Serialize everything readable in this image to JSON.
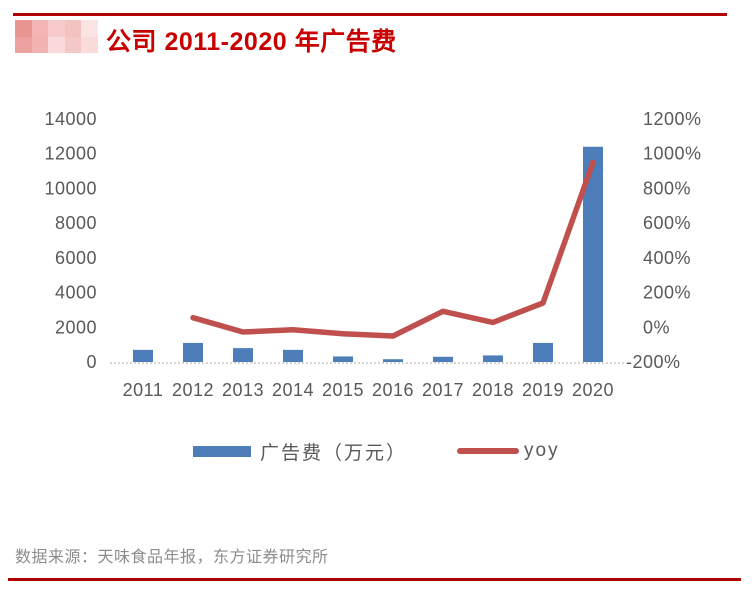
{
  "header": {
    "title": "公司 2011-2020 年广告费",
    "logo_mosaic_colors": [
      "#E99693",
      "#F2B5B3",
      "#F7CBCB",
      "#F4C2C1",
      "#FBE4E4",
      "#ECA3A0",
      "#F1B2B0",
      "#F9D9D9",
      "#F5C8C8",
      "#FADCDC"
    ]
  },
  "chart_data": {
    "type": "bar",
    "subtype": "bar+line combo, dual axis",
    "categories": [
      "2011",
      "2012",
      "2013",
      "2014",
      "2015",
      "2016",
      "2017",
      "2018",
      "2019",
      "2020"
    ],
    "series": [
      {
        "name": "广告费（万元）",
        "type": "bar",
        "axis": "left",
        "color": "#4E7EB9",
        "values": [
          700,
          1100,
          800,
          700,
          320,
          160,
          300,
          380,
          1100,
          12400
        ]
      },
      {
        "name": "yoy",
        "type": "line",
        "axis": "right",
        "color": "#C0504D",
        "values": [
          null,
          55,
          -27,
          -14,
          -37,
          -50,
          92,
          28,
          140,
          950
        ]
      }
    ],
    "left_axis": {
      "min": 0,
      "max": 14000,
      "step": 2000,
      "tick_labels": [
        "0",
        "2000",
        "4000",
        "6000",
        "8000",
        "10000",
        "12000",
        "14000"
      ]
    },
    "right_axis": {
      "min": -200,
      "max": 1200,
      "step": 200,
      "tick_labels": [
        "-200%",
        "0%",
        "200%",
        "400%",
        "600%",
        "800%",
        "1000%",
        "1200%"
      ]
    },
    "grid": false,
    "legend_position": "bottom",
    "title": "公司 2011-2020 年广告费"
  },
  "footer": {
    "source": "数据来源：天味食品年报，东方证券研究所"
  },
  "colors": {
    "rule_red": "#B00000",
    "title_red": "#C90000",
    "bar_blue": "#4E7EB9",
    "line_red": "#C0504D",
    "axis_gray": "#595959",
    "source_gray": "#8C8C8C",
    "baseline_gray": "#C9C9C9"
  }
}
